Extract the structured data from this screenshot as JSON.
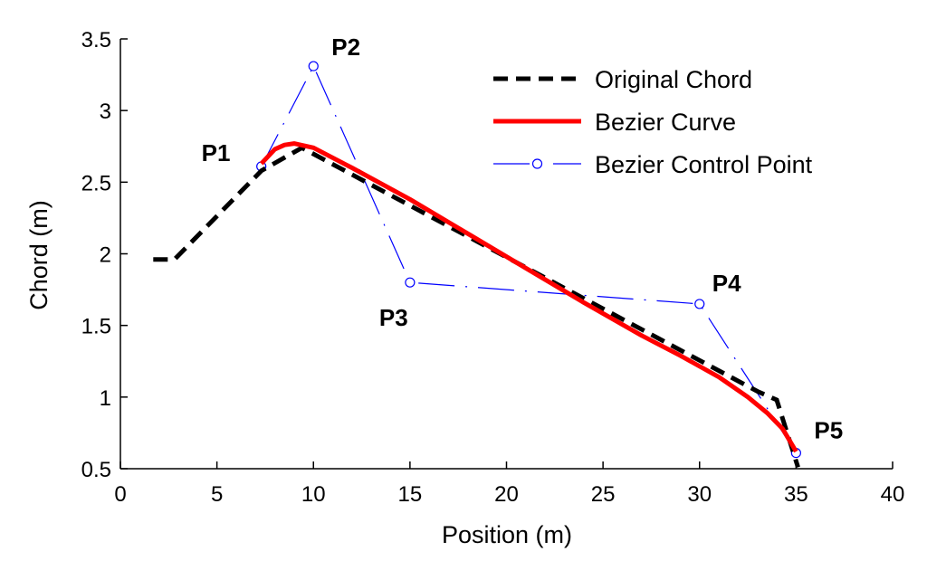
{
  "chart_data": {
    "type": "line",
    "xlabel": "Position (m)",
    "ylabel": "Chord (m)",
    "xlim": [
      0,
      40
    ],
    "ylim": [
      0.5,
      3.5
    ],
    "xticks": [
      0,
      5,
      10,
      15,
      20,
      25,
      30,
      35,
      40
    ],
    "yticks": [
      0.5,
      1,
      1.5,
      2,
      2.5,
      3,
      3.5
    ],
    "xtick_labels": [
      "0",
      "5",
      "10",
      "15",
      "20",
      "25",
      "30",
      "35",
      "40"
    ],
    "ytick_labels": [
      "0.5",
      "1",
      "1.5",
      "2",
      "2.5",
      "3",
      "3.5"
    ],
    "grid": false,
    "legend_position": "top-right",
    "series": [
      {
        "name": "Original Chord",
        "style": "dashed",
        "color": "#000000",
        "x": [
          1.7,
          2.8,
          7.3,
          9.4,
          33.0,
          34.0,
          35.1
        ],
        "y": [
          1.96,
          1.96,
          2.58,
          2.74,
          1.04,
          0.98,
          0.51
        ]
      },
      {
        "name": "Bezier Curve",
        "style": "solid",
        "color": "#ff0000",
        "x": [
          7.3,
          8.0,
          8.5,
          9.0,
          10.0,
          12.0,
          15.0,
          18.0,
          21.0,
          24.0,
          27.0,
          29.0,
          31.0,
          32.5,
          33.5,
          34.3,
          35.0
        ],
        "y": [
          2.63,
          2.73,
          2.76,
          2.77,
          2.74,
          2.6,
          2.38,
          2.14,
          1.9,
          1.66,
          1.43,
          1.29,
          1.14,
          1.0,
          0.89,
          0.78,
          0.62
        ]
      },
      {
        "name": "Bezier Control Point",
        "style": "dash-dot with circle markers",
        "color": "#0000ff",
        "x": [
          7.3,
          10.0,
          15.0,
          30.0,
          35.0
        ],
        "y": [
          2.61,
          3.31,
          1.8,
          1.65,
          0.61
        ]
      }
    ],
    "annotations": [
      {
        "text": "P1",
        "x": 7.3,
        "y": 2.61
      },
      {
        "text": "P2",
        "x": 10.0,
        "y": 3.31
      },
      {
        "text": "P3",
        "x": 15.0,
        "y": 1.8
      },
      {
        "text": "P4",
        "x": 30.0,
        "y": 1.65
      },
      {
        "text": "P5",
        "x": 35.0,
        "y": 0.61
      }
    ]
  }
}
